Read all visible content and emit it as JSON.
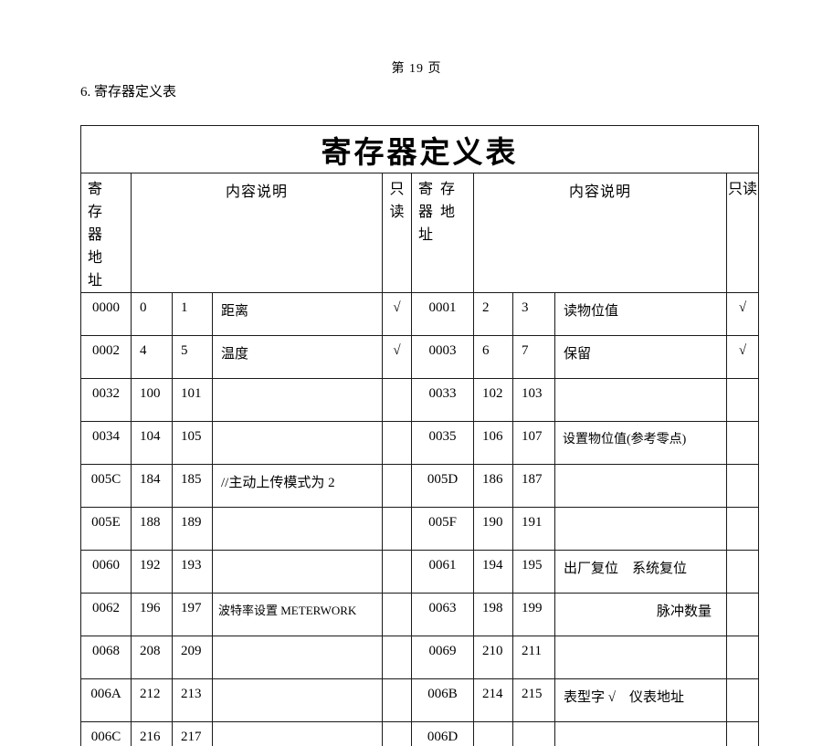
{
  "page": {
    "page_number": "第 19 页",
    "section_heading": "6. 寄存器定义表"
  },
  "table": {
    "title": "寄存器定义表",
    "header": {
      "address": "寄存器地址",
      "description": "内容说明",
      "readonly": "只读"
    },
    "check_mark": "√",
    "rows": [
      {
        "left": {
          "addr": "0000",
          "b1": "0",
          "b2": "1",
          "desc": "距离",
          "ro": "√"
        },
        "right": {
          "addr": "0001",
          "b1": "2",
          "b2": "3",
          "desc": "读物位值",
          "ro": "√"
        }
      },
      {
        "left": {
          "addr": "0002",
          "b1": "4",
          "b2": "5",
          "desc": "温度",
          "ro": "√"
        },
        "right": {
          "addr": "0003",
          "b1": "6",
          "b2": "7",
          "desc": "保留",
          "ro": "√"
        }
      },
      {
        "left": {
          "addr": "0032",
          "b1": "100",
          "b2": "101",
          "desc": "",
          "ro": ""
        },
        "right": {
          "addr": "0033",
          "b1": "102",
          "b2": "103",
          "desc": "",
          "ro": ""
        }
      },
      {
        "left": {
          "addr": "0034",
          "b1": "104",
          "b2": "105",
          "desc": "",
          "ro": ""
        },
        "right": {
          "addr": "0035",
          "b1": "106",
          "b2": "107",
          "desc": "设置物位值(参考零点)",
          "ro": ""
        }
      },
      {
        "left": {
          "addr": "005C",
          "b1": "184",
          "b2": "185",
          "desc": "//主动上传模式为 2",
          "ro": ""
        },
        "right": {
          "addr": "005D",
          "b1": "186",
          "b2": "187",
          "desc": "",
          "ro": ""
        }
      },
      {
        "left": {
          "addr": "005E",
          "b1": "188",
          "b2": "189",
          "desc": "",
          "ro": ""
        },
        "right": {
          "addr": "005F",
          "b1": "190",
          "b2": "191",
          "desc": "",
          "ro": ""
        }
      },
      {
        "left": {
          "addr": "0060",
          "b1": "192",
          "b2": "193",
          "desc": "",
          "ro": ""
        },
        "right": {
          "addr": "0061",
          "b1": "194",
          "b2": "195",
          "desc": "出厂复位　系统复位",
          "ro": ""
        }
      },
      {
        "left": {
          "addr": "0062",
          "b1": "196",
          "b2": "197",
          "desc": "波特率设置 METERWORK",
          "ro": ""
        },
        "right": {
          "addr": "0063",
          "b1": "198",
          "b2": "199",
          "desc": "脉冲数量",
          "ro": ""
        }
      },
      {
        "left": {
          "addr": "0068",
          "b1": "208",
          "b2": "209",
          "desc": "",
          "ro": ""
        },
        "right": {
          "addr": "0069",
          "b1": "210",
          "b2": "211",
          "desc": "",
          "ro": ""
        }
      },
      {
        "left": {
          "addr": "006A",
          "b1": "212",
          "b2": "213",
          "desc": "",
          "ro": ""
        },
        "right": {
          "addr": "006B",
          "b1": "214",
          "b2": "215",
          "desc": "表型字 √　仪表地址",
          "ro": ""
        }
      },
      {
        "left": {
          "addr": "006C",
          "b1": "216",
          "b2": "217",
          "desc": "",
          "ro": ""
        },
        "right": {
          "addr": "006D",
          "b1": "",
          "b2": "",
          "desc": "",
          "ro": ""
        }
      }
    ]
  },
  "colors": {
    "text": "#000000",
    "border": "#1a1a1a",
    "background": "#ffffff"
  }
}
